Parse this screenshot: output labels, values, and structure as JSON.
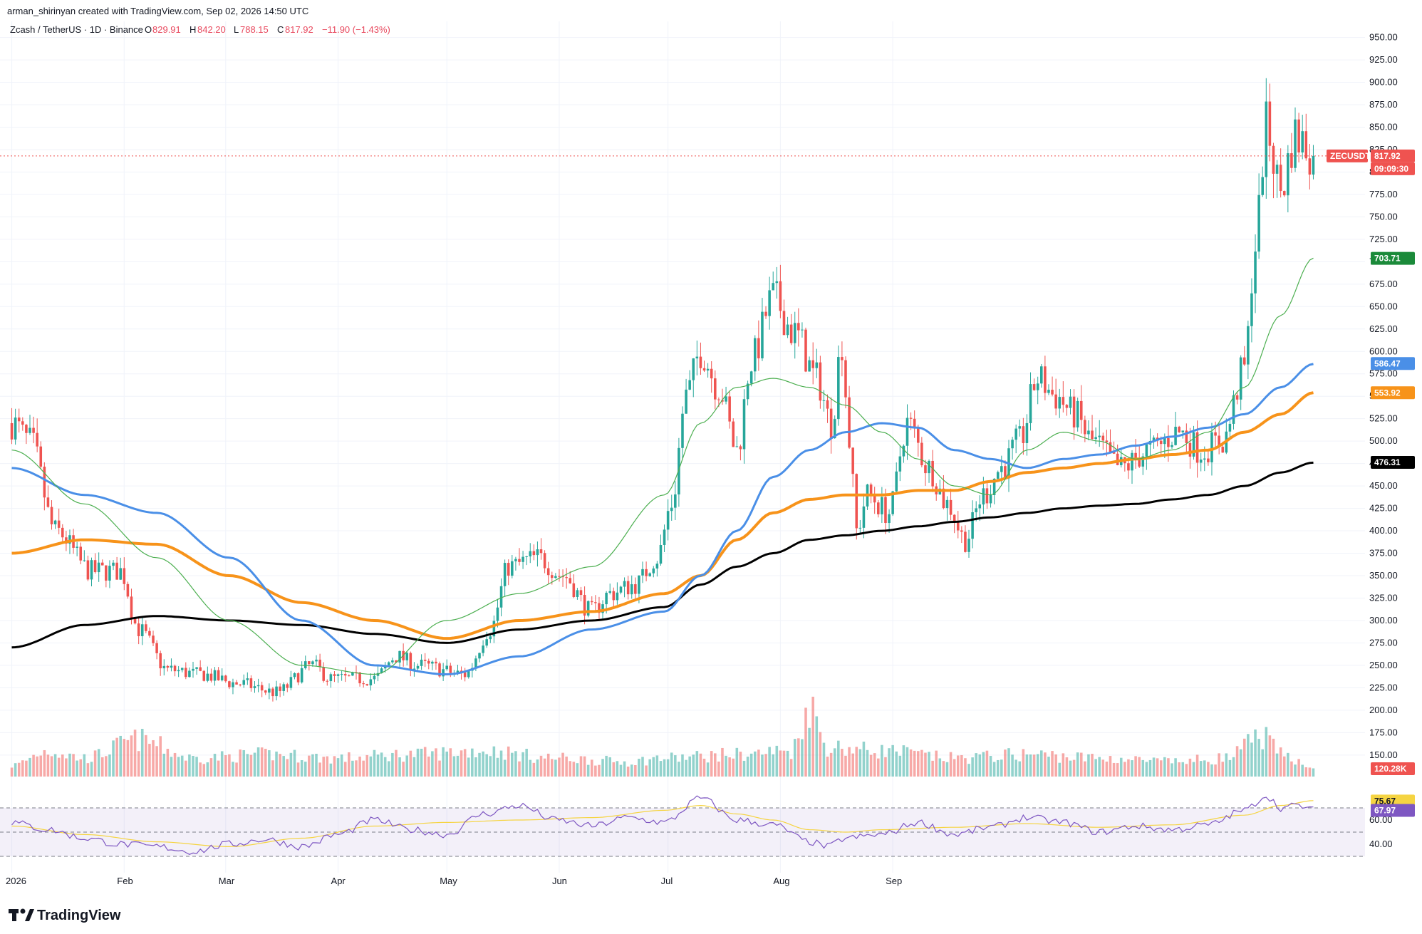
{
  "header": {
    "credit": "arman_shirinyan created with TradingView.com, Sep 02, 2026 14:50 UTC",
    "symbol_line": "Zcash / TetherUS · 1D · Binance",
    "ohlc": {
      "o_label": "O",
      "o_value": "829.91",
      "h_label": "H",
      "h_value": "842.20",
      "l_label": "L",
      "l_value": "788.15",
      "c_label": "C",
      "c_value": "817.92",
      "change": "−11.90 (−1.43%)"
    }
  },
  "branding": {
    "logo_text": "TradingView"
  },
  "price_badges": {
    "symbol": "ZECUSDT",
    "last_price": "817.92",
    "countdown": "09:09:30",
    "ma_short": "703.71",
    "ma_mid": "586.47",
    "ma_long": "553.92",
    "ma_longest": "476.31",
    "volume": "120.28K",
    "rsi_ma": "75.67",
    "rsi": "67.97"
  },
  "colors": {
    "up": "#26a69a",
    "down": "#ef5350",
    "ma_short": "#4caf50",
    "ma_mid": "#4a8fe7",
    "ma_long": "#f7931a",
    "ma_longest": "#000000",
    "rsi": "#7e57c2",
    "rsi_ma": "#f5d442"
  },
  "chart_data": {
    "type": "candlestick",
    "title": "Zcash / TetherUS · 1D · Binance",
    "x_ticks": [
      "2026",
      "Feb",
      "Mar",
      "Apr",
      "May",
      "Jun",
      "Jul",
      "Aug",
      "Sep"
    ],
    "y_ticks": [
      "150.00",
      "175.00",
      "200.00",
      "225.00",
      "250.00",
      "275.00",
      "300.00",
      "325.00",
      "350.00",
      "375.00",
      "400.00",
      "425.00",
      "450.00",
      "475.00",
      "500.00",
      "525.00",
      "550.00",
      "575.00",
      "600.00",
      "625.00",
      "650.00",
      "675.00",
      "700.00",
      "725.00",
      "750.00",
      "775.00",
      "800.00",
      "825.00",
      "850.00",
      "875.00",
      "900.00",
      "925.00",
      "950.00"
    ],
    "ylim": [
      130,
      960
    ],
    "rsi_ticks": [
      "40.00",
      "60.00"
    ],
    "rsi_levels": [
      30,
      50,
      70
    ],
    "series_anchors": {
      "price_close": [
        [
          0,
          520
        ],
        [
          5,
          500
        ],
        [
          12,
          400
        ],
        [
          22,
          355
        ],
        [
          30,
          355
        ],
        [
          35,
          290
        ],
        [
          43,
          245
        ],
        [
          52,
          240
        ],
        [
          62,
          230
        ],
        [
          73,
          220
        ],
        [
          83,
          250
        ],
        [
          88,
          235
        ],
        [
          100,
          235
        ],
        [
          106,
          260
        ],
        [
          112,
          250
        ],
        [
          125,
          240
        ],
        [
          132,
          290
        ],
        [
          137,
          360
        ],
        [
          145,
          370
        ],
        [
          152,
          350
        ],
        [
          160,
          310
        ],
        [
          165,
          330
        ],
        [
          172,
          340
        ],
        [
          178,
          370
        ],
        [
          182,
          430
        ],
        [
          186,
          550
        ],
        [
          190,
          600
        ],
        [
          195,
          560
        ],
        [
          200,
          490
        ],
        [
          204,
          590
        ],
        [
          210,
          660
        ],
        [
          216,
          620
        ],
        [
          222,
          570
        ],
        [
          226,
          520
        ],
        [
          229,
          610
        ],
        [
          231,
          500
        ],
        [
          233,
          400
        ],
        [
          236,
          440
        ],
        [
          242,
          420
        ],
        [
          247,
          520
        ],
        [
          253,
          470
        ],
        [
          258,
          430
        ],
        [
          263,
          390
        ],
        [
          268,
          440
        ],
        [
          273,
          470
        ],
        [
          278,
          500
        ],
        [
          283,
          570
        ],
        [
          288,
          550
        ],
        [
          293,
          530
        ],
        [
          298,
          500
        ],
        [
          306,
          470
        ],
        [
          314,
          490
        ],
        [
          322,
          510
        ],
        [
          328,
          490
        ],
        [
          334,
          500
        ],
        [
          340,
          580
        ],
        [
          343,
          720
        ],
        [
          346,
          850
        ],
        [
          350,
          780
        ],
        [
          354,
          840
        ],
        [
          357,
          830
        ],
        [
          359,
          818
        ]
      ],
      "ma_short": [
        [
          0,
          490
        ],
        [
          20,
          430
        ],
        [
          40,
          370
        ],
        [
          60,
          300
        ],
        [
          80,
          250
        ],
        [
          100,
          240
        ],
        [
          120,
          300
        ],
        [
          140,
          330
        ],
        [
          160,
          360
        ],
        [
          180,
          440
        ],
        [
          190,
          520
        ],
        [
          200,
          560
        ],
        [
          210,
          570
        ],
        [
          220,
          560
        ],
        [
          230,
          540
        ],
        [
          240,
          510
        ],
        [
          250,
          480
        ],
        [
          260,
          450
        ],
        [
          270,
          440
        ],
        [
          280,
          490
        ],
        [
          290,
          510
        ],
        [
          300,
          500
        ],
        [
          310,
          480
        ],
        [
          320,
          490
        ],
        [
          330,
          510
        ],
        [
          340,
          560
        ],
        [
          350,
          640
        ],
        [
          359,
          704
        ]
      ],
      "ma_mid": [
        [
          0,
          470
        ],
        [
          20,
          440
        ],
        [
          40,
          420
        ],
        [
          60,
          370
        ],
        [
          80,
          300
        ],
        [
          100,
          250
        ],
        [
          120,
          240
        ],
        [
          140,
          260
        ],
        [
          160,
          290
        ],
        [
          180,
          310
        ],
        [
          190,
          350
        ],
        [
          200,
          400
        ],
        [
          210,
          460
        ],
        [
          220,
          490
        ],
        [
          230,
          510
        ],
        [
          240,
          520
        ],
        [
          250,
          515
        ],
        [
          260,
          490
        ],
        [
          270,
          480
        ],
        [
          280,
          470
        ],
        [
          290,
          480
        ],
        [
          300,
          485
        ],
        [
          310,
          495
        ],
        [
          320,
          505
        ],
        [
          330,
          515
        ],
        [
          340,
          530
        ],
        [
          350,
          560
        ],
        [
          359,
          586
        ]
      ],
      "ma_long": [
        [
          0,
          375
        ],
        [
          20,
          390
        ],
        [
          40,
          385
        ],
        [
          60,
          350
        ],
        [
          80,
          320
        ],
        [
          100,
          300
        ],
        [
          120,
          280
        ],
        [
          140,
          300
        ],
        [
          160,
          310
        ],
        [
          180,
          330
        ],
        [
          190,
          350
        ],
        [
          200,
          390
        ],
        [
          210,
          420
        ],
        [
          220,
          435
        ],
        [
          230,
          440
        ],
        [
          240,
          440
        ],
        [
          250,
          445
        ],
        [
          260,
          445
        ],
        [
          270,
          455
        ],
        [
          280,
          465
        ],
        [
          290,
          470
        ],
        [
          300,
          475
        ],
        [
          310,
          480
        ],
        [
          320,
          485
        ],
        [
          330,
          490
        ],
        [
          340,
          510
        ],
        [
          350,
          530
        ],
        [
          359,
          554
        ]
      ],
      "ma_longest": [
        [
          0,
          270
        ],
        [
          20,
          295
        ],
        [
          40,
          305
        ],
        [
          60,
          300
        ],
        [
          80,
          295
        ],
        [
          100,
          285
        ],
        [
          120,
          275
        ],
        [
          140,
          290
        ],
        [
          160,
          300
        ],
        [
          180,
          315
        ],
        [
          190,
          340
        ],
        [
          200,
          360
        ],
        [
          210,
          375
        ],
        [
          220,
          390
        ],
        [
          230,
          395
        ],
        [
          240,
          400
        ],
        [
          250,
          405
        ],
        [
          260,
          410
        ],
        [
          270,
          415
        ],
        [
          280,
          420
        ],
        [
          290,
          425
        ],
        [
          300,
          428
        ],
        [
          310,
          430
        ],
        [
          320,
          435
        ],
        [
          330,
          440
        ],
        [
          340,
          450
        ],
        [
          350,
          465
        ],
        [
          359,
          476
        ]
      ],
      "volume": [
        [
          0,
          0.15
        ],
        [
          10,
          0.35
        ],
        [
          20,
          0.25
        ],
        [
          35,
          0.5
        ],
        [
          50,
          0.25
        ],
        [
          70,
          0.3
        ],
        [
          90,
          0.25
        ],
        [
          110,
          0.3
        ],
        [
          130,
          0.35
        ],
        [
          150,
          0.25
        ],
        [
          170,
          0.2
        ],
        [
          180,
          0.25
        ],
        [
          200,
          0.3
        ],
        [
          215,
          0.35
        ],
        [
          220,
          0.95
        ],
        [
          225,
          0.4
        ],
        [
          240,
          0.35
        ],
        [
          260,
          0.25
        ],
        [
          280,
          0.3
        ],
        [
          300,
          0.25
        ],
        [
          320,
          0.2
        ],
        [
          335,
          0.25
        ],
        [
          345,
          0.55
        ],
        [
          350,
          0.3
        ],
        [
          359,
          0.15
        ]
      ],
      "rsi": [
        [
          0,
          58
        ],
        [
          10,
          52
        ],
        [
          20,
          45
        ],
        [
          30,
          40
        ],
        [
          40,
          38
        ],
        [
          50,
          34
        ],
        [
          60,
          40
        ],
        [
          70,
          44
        ],
        [
          80,
          38
        ],
        [
          90,
          48
        ],
        [
          100,
          60
        ],
        [
          110,
          52
        ],
        [
          120,
          48
        ],
        [
          130,
          65
        ],
        [
          140,
          72
        ],
        [
          150,
          60
        ],
        [
          160,
          55
        ],
        [
          170,
          62
        ],
        [
          180,
          58
        ],
        [
          190,
          78
        ],
        [
          200,
          60
        ],
        [
          210,
          56
        ],
        [
          220,
          42
        ],
        [
          225,
          38
        ],
        [
          230,
          45
        ],
        [
          240,
          48
        ],
        [
          250,
          58
        ],
        [
          260,
          48
        ],
        [
          270,
          54
        ],
        [
          280,
          62
        ],
        [
          290,
          58
        ],
        [
          300,
          50
        ],
        [
          310,
          55
        ],
        [
          320,
          52
        ],
        [
          330,
          56
        ],
        [
          340,
          68
        ],
        [
          346,
          80
        ],
        [
          350,
          70
        ],
        [
          355,
          72
        ],
        [
          359,
          68
        ]
      ],
      "rsi_ma": [
        [
          0,
          55
        ],
        [
          20,
          48
        ],
        [
          40,
          42
        ],
        [
          60,
          38
        ],
        [
          80,
          45
        ],
        [
          100,
          55
        ],
        [
          120,
          58
        ],
        [
          140,
          60
        ],
        [
          160,
          62
        ],
        [
          180,
          68
        ],
        [
          190,
          72
        ],
        [
          200,
          65
        ],
        [
          210,
          60
        ],
        [
          220,
          52
        ],
        [
          230,
          50
        ],
        [
          240,
          52
        ],
        [
          260,
          54
        ],
        [
          280,
          57
        ],
        [
          300,
          54
        ],
        [
          320,
          56
        ],
        [
          340,
          64
        ],
        [
          350,
          72
        ],
        [
          359,
          76
        ]
      ]
    },
    "candle_count": 360,
    "legend": "none",
    "grid": true
  }
}
